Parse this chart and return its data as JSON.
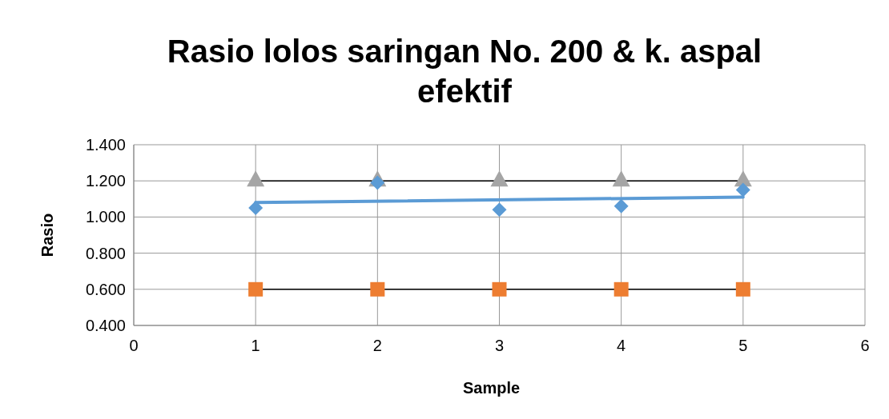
{
  "chart_data": {
    "type": "scatter",
    "title": "Rasio lolos saringan No. 200 & k. aspal efektif",
    "xlabel": "Sample",
    "ylabel": "Rasio",
    "xlim": [
      0,
      6
    ],
    "xticks": [
      0,
      1,
      2,
      3,
      4,
      5,
      6
    ],
    "ylim": [
      0.4,
      1.4
    ],
    "yticks": [
      {
        "value": 0.4,
        "label": "0.400"
      },
      {
        "value": 0.6,
        "label": "0.600"
      },
      {
        "value": 0.8,
        "label": "0.800"
      },
      {
        "value": 1.0,
        "label": "1.000"
      },
      {
        "value": 1.2,
        "label": "1.200"
      },
      {
        "value": 1.4,
        "label": "1.400"
      }
    ],
    "grid": true,
    "series": [
      {
        "type": "line",
        "x": [
          1,
          2,
          3,
          4,
          5
        ],
        "values": [
          1.2,
          1.2,
          1.2,
          1.2,
          1.2
        ],
        "color": "#000000",
        "colors": [
          "#a5a5a5",
          "#a5a5a5",
          "#a5a5a5",
          "#a5a5a5",
          "#a5a5a5"
        ],
        "marker": "triangle"
      },
      {
        "type": "line",
        "x": [
          1,
          2,
          3,
          4,
          5
        ],
        "values": [
          0.6,
          0.6,
          0.6,
          0.6,
          0.6
        ],
        "color": "#000000",
        "colors": [
          "#ed7d31",
          "#ed7d31",
          "#ed7d31",
          "#ed7d31",
          "#ed7d31"
        ],
        "marker": "square"
      },
      {
        "type": "line",
        "x": [
          1,
          5
        ],
        "values": [
          1.08,
          1.11
        ],
        "color": "#5b9bd5",
        "marker": "none"
      },
      {
        "x": [
          1,
          2,
          3,
          4,
          5
        ],
        "values": [
          1.05,
          1.19,
          1.04,
          1.06,
          1.15
        ],
        "color": "#5b9bd5",
        "marker": "diamond"
      }
    ]
  }
}
